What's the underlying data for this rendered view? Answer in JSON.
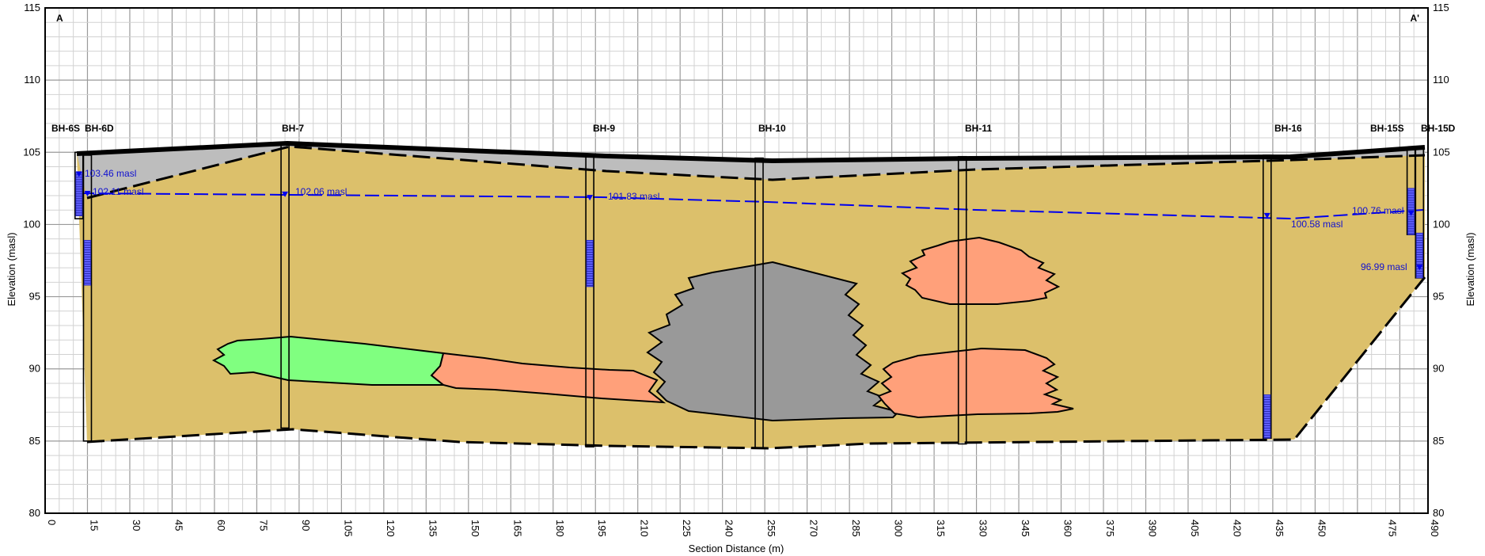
{
  "section": {
    "start_label": "A",
    "end_label": "A'",
    "x_label": "Section Distance (m)",
    "y_label_left": "Elevation (masl)",
    "y_label_right": "Elevation (masl)",
    "x_range": [
      0,
      490
    ],
    "x_ticks": [
      0,
      15,
      30,
      45,
      60,
      75,
      90,
      105,
      120,
      135,
      150,
      165,
      180,
      195,
      210,
      225,
      240,
      255,
      270,
      285,
      300,
      315,
      330,
      345,
      360,
      375,
      390,
      405,
      420,
      435,
      450,
      475,
      490
    ],
    "y_range": [
      80,
      115
    ],
    "y_ticks": [
      80,
      85,
      90,
      95,
      100,
      105,
      110,
      115
    ],
    "grid": "on",
    "colors": {
      "sand": "#dcc06b",
      "fill_material": "#bdbdbd",
      "gray_zone": "#999999",
      "green_zone": "#80ff80",
      "salmon_zone": "#ffa07a",
      "water_table": "#0000ee",
      "screen": "#6060ff"
    }
  },
  "chart_data": {
    "type": "cross-section",
    "boreholes": [
      {
        "name": "BH-6S",
        "x": 12
      },
      {
        "name": "BH-6D",
        "x": 15
      },
      {
        "name": "BH-7",
        "x": 85
      },
      {
        "name": "BH-9",
        "x": 193
      },
      {
        "name": "BH-10",
        "x": 253
      },
      {
        "name": "BH-11",
        "x": 325
      },
      {
        "name": "BH-16",
        "x": 433
      },
      {
        "name": "BH-15S",
        "x": 484
      },
      {
        "name": "BH-15D",
        "x": 487
      }
    ],
    "water_levels": [
      {
        "label": "103.46 masl",
        "x": 12,
        "y": 103.46
      },
      {
        "label": "102.11 masl",
        "x": 15,
        "y": 102.11
      },
      {
        "label": "102.06 masl",
        "x": 85,
        "y": 102.06
      },
      {
        "label": "101.83 masl",
        "x": 193,
        "y": 101.83
      },
      {
        "label": "100.58 masl",
        "x": 433,
        "y": 100.58
      },
      {
        "label": "100.76 masl",
        "x": 484,
        "y": 100.76
      },
      {
        "label": "96.99 masl",
        "x": 487,
        "y": 96.99
      }
    ]
  }
}
